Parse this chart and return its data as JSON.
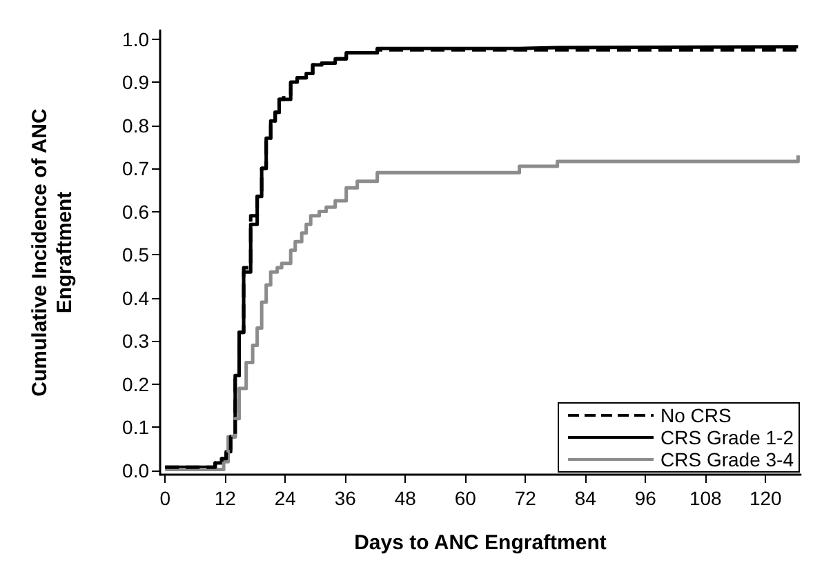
{
  "chart_data": {
    "type": "step",
    "xlabel": "Days to ANC Engraftment",
    "ylabel": "Cumulative Incidence of ANC\nEngraftment",
    "xlim": [
      -1,
      127
    ],
    "ylim": [
      -0.01,
      1.02
    ],
    "xticks": [
      0,
      12,
      24,
      36,
      48,
      60,
      72,
      84,
      96,
      108,
      120
    ],
    "yticks": [
      {
        "value": 0,
        "label": "0.0"
      },
      {
        "value": 0.1,
        "label": "0.1"
      },
      {
        "value": 0.2,
        "label": "0.2"
      },
      {
        "value": 0.3,
        "label": "0.3"
      },
      {
        "value": 0.4,
        "label": "0.4"
      },
      {
        "value": 0.5,
        "label": "0.5"
      },
      {
        "value": 0.6,
        "label": "0.6"
      },
      {
        "value": 0.7,
        "label": "0.7"
      },
      {
        "value": 0.8,
        "label": "0.8"
      },
      {
        "value": 0.9,
        "label": "0.9"
      },
      {
        "value": 1,
        "label": "1.0"
      }
    ],
    "grid": false,
    "legend": "bottom right",
    "marker": "none",
    "series": [
      {
        "name": "No CRS",
        "color": "#000000",
        "line_style": "dashed",
        "x": [
          0,
          10,
          11.3,
          12.2,
          13.1,
          14,
          14.8,
          15.7,
          17.1,
          18.4,
          19.3,
          20.2,
          21.1,
          22,
          22.8,
          23.7,
          25.1,
          26.4,
          28.2,
          29.5,
          31.3,
          34,
          36.2,
          42.4,
          70.8,
          126.5
        ],
        "values": [
          0.007,
          0.017,
          0.027,
          0.043,
          0.078,
          0.22,
          0.32,
          0.47,
          0.59,
          0.635,
          0.7,
          0.77,
          0.81,
          0.83,
          0.86,
          0.87,
          0.9,
          0.91,
          0.92,
          0.94,
          0.944,
          0.954,
          0.968,
          0.975,
          0.975,
          0.975
        ]
      },
      {
        "name": "CRS Grade 1-2",
        "color": "#000000",
        "line_style": "solid",
        "x": [
          0,
          10,
          11.3,
          12.2,
          13.1,
          14,
          14.8,
          15.7,
          17.1,
          18.4,
          19.3,
          20.2,
          21.1,
          22,
          22.8,
          23.7,
          25.1,
          26.4,
          28.2,
          29.5,
          31.3,
          34,
          36.2,
          42.4,
          70.8,
          78.4,
          126.5
        ],
        "values": [
          0.007,
          0.017,
          0.027,
          0.043,
          0.078,
          0.22,
          0.32,
          0.46,
          0.57,
          0.635,
          0.7,
          0.77,
          0.81,
          0.83,
          0.86,
          0.86,
          0.9,
          0.91,
          0.92,
          0.94,
          0.944,
          0.954,
          0.968,
          0.978,
          0.98,
          0.982,
          0.982
        ]
      },
      {
        "name": "CRS Grade 3-4",
        "color": "#8c8c8c",
        "line_style": "solid",
        "x": [
          0,
          11.7,
          12.6,
          14,
          14.8,
          16.2,
          17.5,
          18.4,
          19.3,
          20.2,
          21.1,
          22.4,
          23.3,
          25.1,
          26,
          27.3,
          28.2,
          29.1,
          30.8,
          32.2,
          34,
          36.2,
          38.4,
          42.4,
          70.8,
          78.4,
          126.5
        ],
        "values": [
          0.002,
          0.02,
          0.078,
          0.12,
          0.19,
          0.25,
          0.29,
          0.33,
          0.39,
          0.43,
          0.46,
          0.47,
          0.48,
          0.51,
          0.53,
          0.55,
          0.57,
          0.59,
          0.6,
          0.61,
          0.625,
          0.655,
          0.67,
          0.69,
          0.705,
          0.716,
          0.73
        ]
      }
    ]
  }
}
